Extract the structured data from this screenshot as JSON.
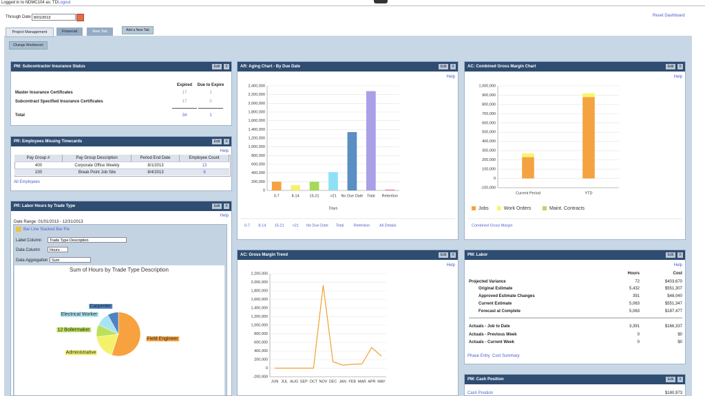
{
  "header": {
    "login": "Logged in to NDMC104 as: TD",
    "logout": "Logout",
    "through_date_label": "Through Date",
    "through_date": "8/01/2013",
    "reset": "Reset Dashboard"
  },
  "tabs": [
    "Project Management",
    "Financial",
    "New Tab"
  ],
  "add_tab": "Add a New Tab",
  "change_workbench": "Change Workbench",
  "buttons": {
    "edit": "Edit",
    "close": "X",
    "help": "Help"
  },
  "panels": {
    "insurance": {
      "title": "PM: Subcontractor Insurance Status",
      "columns": [
        "Expired",
        "Due to Expire"
      ],
      "rows": [
        [
          "Master Insurance Certificates",
          17,
          1
        ],
        [
          "Subcontract Specified Insurance Certificates",
          17,
          0
        ]
      ],
      "total": [
        "Total",
        34,
        1
      ]
    },
    "timecards": {
      "title": "PR: Employees Missing Timecards",
      "columns": [
        "Pay Group #",
        "Pay Group Description",
        "Period End Date",
        "Employee Count"
      ],
      "rows": [
        [
          400,
          "Corporate Office Weekly",
          "8/1/2013",
          13
        ],
        [
          100,
          "Break Point Job Site",
          "8/4/2013",
          8
        ]
      ],
      "link": "All Employees"
    },
    "labor_hours": {
      "title": "PR: Labor Hours by Trade Type",
      "date_range": "Date Range: 01/01/2013 - 12/31/2013",
      "chart_types": "Bar Line Stacked Bar Pie",
      "label_column": "Label Column",
      "label_value": "Trade Type Description",
      "data_column": "Data Column",
      "data_value": "Hours",
      "aggregation": "Data Aggregation",
      "aggregation_value": "Sum",
      "chart": {
        "type": "pie",
        "title": "Sum of Hours by Trade Type Description",
        "categories": [
          "Field Engineer",
          "Administrative",
          "12 Boilermaker",
          "Electrical Worker",
          "Carpenter"
        ],
        "values": [
          55,
          18,
          9,
          10,
          8
        ],
        "colors": [
          "#f7a23e",
          "#f4f26a",
          "#bde05a",
          "#a9e4f4",
          "#4f84c4"
        ]
      }
    },
    "aging": {
      "title": "AR: Aging Chart - By Due Date",
      "chart": {
        "type": "bar",
        "categories": [
          "0-7",
          "8-14",
          "15-21",
          ">21",
          "No Due Date",
          "Total",
          "Retention"
        ],
        "values": [
          200000,
          120000,
          200000,
          420000,
          1340000,
          2280000,
          20000
        ],
        "colors": [
          "#f5a340",
          "#f7f06b",
          "#a6d85a",
          "#8fe0f5",
          "#5b8ec2",
          "#a9a0e8",
          "#e87aa8"
        ],
        "ylim": [
          0,
          2400000
        ],
        "yticks": [
          0,
          {
            "value": 200000,
            "label": "200,000"
          },
          {
            "value": 400000,
            "label": "400,000"
          },
          {
            "value": 600000,
            "label": "600,000"
          },
          {
            "value": 800000,
            "label": "800,000"
          },
          {
            "value": 1000000,
            "label": "1,000,000"
          },
          {
            "value": 1200000,
            "label": "1,200,000"
          },
          {
            "value": 1400000,
            "label": "1,400,000"
          },
          {
            "value": 1600000,
            "label": "1,600,000"
          },
          {
            "value": 1800000,
            "label": "1,800,000"
          },
          {
            "value": 2000000,
            "label": "2,000,000"
          },
          {
            "value": 2200000,
            "label": "2,200,000"
          },
          {
            "value": 2400000,
            "label": "2,400,000"
          }
        ],
        "x_label": "Days",
        "grid": true
      },
      "links": [
        "0-7",
        "8-14",
        "15-21",
        ">21",
        "No Due Date",
        "Total",
        "Retention",
        "All Details"
      ]
    },
    "gross_margin": {
      "title": "AC: Combined Gross Margin Chart",
      "chart": {
        "type": "stacked_bar",
        "categories": [
          "Current Period",
          "YTD"
        ],
        "series": [
          {
            "name": "Jobs",
            "color": "#f5a340",
            "values": [
              230000,
              880000
            ]
          },
          {
            "name": "Work Orders",
            "color": "#f7f56b",
            "values": [
              40000,
              40000
            ]
          },
          {
            "name": "Maint. Contracts",
            "color": "#b4d96a",
            "values": [
              0,
              0
            ]
          }
        ],
        "ylim": [
          -100000,
          1000000
        ],
        "yticks": [
          {
            "value": -100000,
            "label": "-100,000"
          },
          0,
          {
            "value": 100000,
            "label": "100,000"
          },
          {
            "value": 200000,
            "label": "200,000"
          },
          {
            "value": 300000,
            "label": "300,000"
          },
          {
            "value": 400000,
            "label": "400,000"
          },
          {
            "value": 500000,
            "label": "500,000"
          },
          {
            "value": 600000,
            "label": "600,000"
          },
          {
            "value": 700000,
            "label": "700,000"
          },
          {
            "value": 800000,
            "label": "800,000"
          },
          {
            "value": 900000,
            "label": "900,000"
          },
          {
            "value": 1000000,
            "label": "1,000,000"
          }
        ],
        "grid": true
      },
      "link": "Combined Gross Margin"
    },
    "trend": {
      "title": "AC: Gross Margin Trend",
      "chart": {
        "type": "line",
        "categories": [
          "JUN",
          "JUL",
          "AUG",
          "SEP",
          "OCT",
          "NOV",
          "DEC",
          "JAN",
          "FEB",
          "MAR",
          "APR",
          "MAY"
        ],
        "values": [
          0,
          0,
          0,
          0,
          0,
          1930000,
          150000,
          70000,
          90000,
          100000,
          480000,
          280000
        ],
        "color": "#f0a030",
        "ylim": [
          -200000,
          2200000
        ],
        "yticks": [
          {
            "value": -200000,
            "label": "-200,000"
          },
          0,
          {
            "value": 200000,
            "label": "200,000"
          },
          {
            "value": 400000,
            "label": "400,000"
          },
          {
            "value": 600000,
            "label": "600,000"
          },
          {
            "value": 800000,
            "label": "800,000"
          },
          {
            "value": 1000000,
            "label": "1,000,000"
          },
          {
            "value": 1200000,
            "label": "1,200,000"
          },
          {
            "value": 1400000,
            "label": "1,400,000"
          },
          {
            "value": 1600000,
            "label": "1,600,000"
          },
          {
            "value": 1800000,
            "label": "1,800,000"
          },
          {
            "value": 2000000,
            "label": "2,000,000"
          },
          {
            "value": 2200000,
            "label": "2,200,000"
          }
        ],
        "grid": true
      }
    },
    "labor": {
      "title": "PM: Labor",
      "columns": [
        "Hours",
        "Cost"
      ],
      "rows": [
        [
          "Projected Variance",
          72,
          "$403,670"
        ],
        [
          "Original Estimate",
          "5,432",
          "$551,307"
        ],
        [
          "Approved Estimate Changes",
          391,
          "$48,040"
        ],
        [
          "Current Estimate",
          "5,063",
          "$551,347"
        ],
        [
          "Forecast at Complete",
          "5,063",
          "$187,477"
        ],
        [
          "Actuals - Job to Date",
          "3,391",
          "$166,337"
        ],
        [
          "Actuals - Previous Week",
          0,
          "$0"
        ],
        [
          "Actuals - Current Week",
          0,
          "$0"
        ]
      ],
      "links": [
        "Phase Entry",
        "Cost Summary"
      ]
    },
    "cash": {
      "title": "PM: Cash Position",
      "link": "Cash Position",
      "value": "$180,973"
    }
  }
}
